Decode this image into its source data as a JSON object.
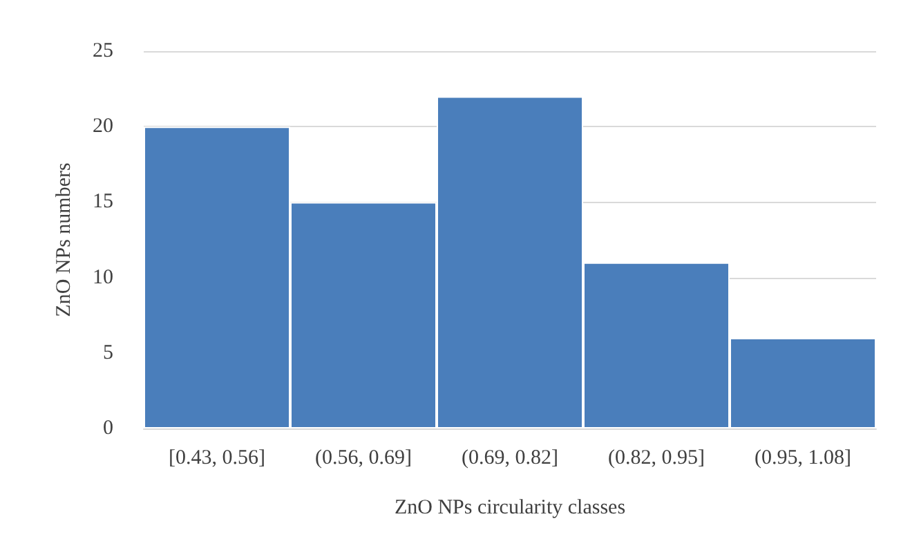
{
  "chart_data": {
    "type": "bar",
    "xlabel": "ZnO NPs circularity classes",
    "ylabel": "ZnO NPs numbers",
    "categories": [
      "[0.43, 0.56]",
      "(0.56, 0.69]",
      "(0.69, 0.82]",
      "(0.82, 0.95]",
      "(0.95, 1.08]"
    ],
    "values": [
      20,
      15,
      22,
      11,
      6
    ],
    "color": "#4a7ebb",
    "ylim": [
      0,
      25
    ],
    "yticks": [
      0,
      5,
      10,
      15,
      20,
      25
    ],
    "grid": "y"
  }
}
